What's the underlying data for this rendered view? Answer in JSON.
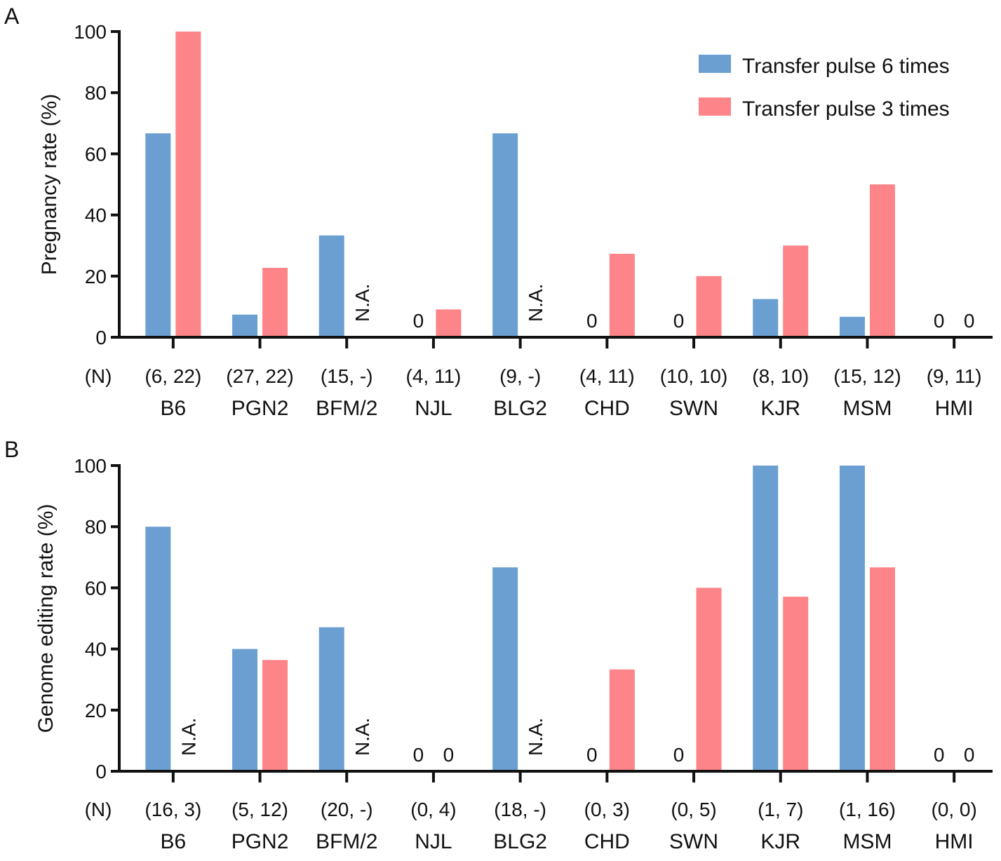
{
  "legend": {
    "items": [
      {
        "label": "Transfer pulse 6 times",
        "color": "#6b9fd2"
      },
      {
        "label": "Transfer pulse 3 times",
        "color": "#fd8489"
      }
    ]
  },
  "chart_data": [
    {
      "panel": "A",
      "type": "bar",
      "ylabel": "Pregnancy rate (%)",
      "ylim": [
        0,
        100
      ],
      "yticks": [
        0,
        20,
        40,
        60,
        80,
        100
      ],
      "n_prefix": "(N)",
      "categories": [
        "B6",
        "PGN2",
        "BFM/2",
        "NJL",
        "BLG2",
        "CHD",
        "SWN",
        "KJR",
        "MSM",
        "HMI"
      ],
      "n_labels": [
        "(6, 22)",
        "(27, 22)",
        "(15, -)",
        "(4, 11)",
        "(9, -)",
        "(4, 11)",
        "(10, 10)",
        "(8, 10)",
        "(15, 12)",
        "(9, 11)"
      ],
      "series": [
        {
          "name": "Transfer pulse 6 times",
          "values": [
            66.7,
            7.4,
            33.3,
            0,
            66.7,
            0,
            0,
            12.5,
            6.7,
            0
          ]
        },
        {
          "name": "Transfer pulse 3 times",
          "values": [
            100,
            22.7,
            null,
            9.1,
            null,
            27.3,
            20,
            30,
            50,
            0
          ]
        }
      ],
      "annotations": [
        {
          "category": "BFM/2",
          "series": 1,
          "text": "N.A."
        },
        {
          "category": "NJL",
          "series": 0,
          "text": "0"
        },
        {
          "category": "BLG2",
          "series": 1,
          "text": "N.A."
        },
        {
          "category": "CHD",
          "series": 0,
          "text": "0"
        },
        {
          "category": "SWN",
          "series": 0,
          "text": "0"
        },
        {
          "category": "HMI",
          "series": 0,
          "text": "0"
        },
        {
          "category": "HMI",
          "series": 1,
          "text": "0"
        }
      ]
    },
    {
      "panel": "B",
      "type": "bar",
      "ylabel": "Genome editing rate (%)",
      "ylim": [
        0,
        100
      ],
      "yticks": [
        0,
        20,
        40,
        60,
        80,
        100
      ],
      "n_prefix": "(N)",
      "categories": [
        "B6",
        "PGN2",
        "BFM/2",
        "NJL",
        "BLG2",
        "CHD",
        "SWN",
        "KJR",
        "MSM",
        "HMI"
      ],
      "n_labels": [
        "(16, 3)",
        "(5, 12)",
        "(20, -)",
        "(0, 4)",
        "(18, -)",
        "(0, 3)",
        "(0, 5)",
        "(1, 7)",
        "(1, 16)",
        "(0, 0)"
      ],
      "series": [
        {
          "name": "Transfer pulse 6 times",
          "values": [
            80,
            40,
            47.1,
            0,
            66.7,
            0,
            0,
            100,
            100,
            0
          ]
        },
        {
          "name": "Transfer pulse 3 times",
          "values": [
            null,
            36.4,
            null,
            0,
            null,
            33.3,
            60,
            57.1,
            66.7,
            0
          ]
        }
      ],
      "annotations": [
        {
          "category": "B6",
          "series": 1,
          "text": "N.A."
        },
        {
          "category": "BFM/2",
          "series": 1,
          "text": "N.A."
        },
        {
          "category": "NJL",
          "series": 0,
          "text": "0"
        },
        {
          "category": "NJL",
          "series": 1,
          "text": "0"
        },
        {
          "category": "BLG2",
          "series": 1,
          "text": "N.A."
        },
        {
          "category": "CHD",
          "series": 0,
          "text": "0"
        },
        {
          "category": "SWN",
          "series": 0,
          "text": "0"
        },
        {
          "category": "HMI",
          "series": 0,
          "text": "0"
        },
        {
          "category": "HMI",
          "series": 1,
          "text": "0"
        }
      ]
    }
  ]
}
